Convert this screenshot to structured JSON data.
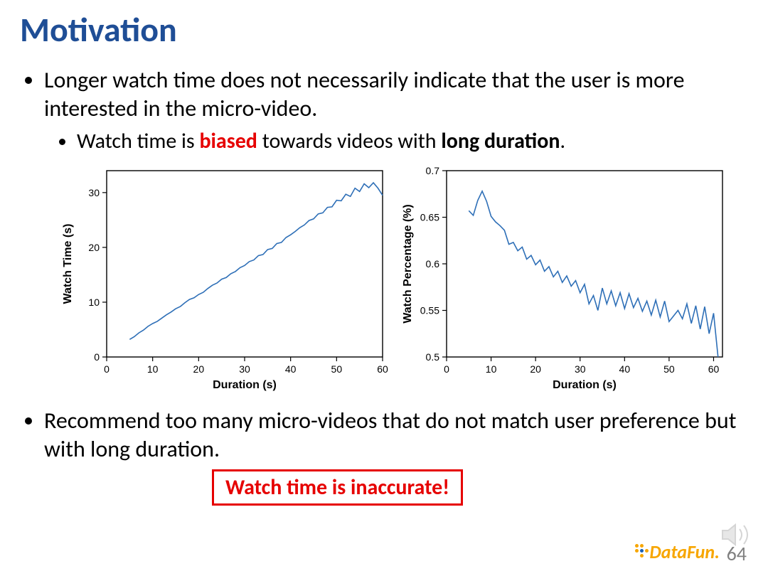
{
  "title": "Motivation",
  "title_color": "#1f4e96",
  "bullets": {
    "b1": "Longer watch time does not necessarily indicate that the user is more interested in the micro-video.",
    "b1_sub_prefix": "Watch time is ",
    "b1_sub_biased": "biased",
    "b1_sub_mid": " towards videos with ",
    "b1_sub_bold": "long duration",
    "b1_sub_suffix": ".",
    "b2": "Recommend too many micro-videos that do not match user preference but with long duration."
  },
  "biased_color": "#e60000",
  "callout": "Watch time is inaccurate!",
  "callout_color": "#e60000",
  "page_number": "64",
  "logo_text_1": "Data",
  "logo_text_2": "Fun.",
  "chart_left": {
    "type": "line",
    "xlabel": "Duration (s)",
    "ylabel": "Watch Time (s)",
    "label_fontsize": 16,
    "tick_fontsize": 14,
    "xlim": [
      0,
      60
    ],
    "ylim": [
      0,
      34
    ],
    "xticks": [
      0,
      10,
      20,
      30,
      40,
      50,
      60
    ],
    "yticks": [
      0,
      10,
      20,
      30
    ],
    "line_color": "#2e6fb7",
    "line_width": 1.6,
    "axis_color": "#000000",
    "background_color": "#ffffff",
    "data": {
      "x": [
        5,
        6,
        7,
        8,
        9,
        10,
        11,
        12,
        13,
        14,
        15,
        16,
        17,
        18,
        19,
        20,
        21,
        22,
        23,
        24,
        25,
        26,
        27,
        28,
        29,
        30,
        31,
        32,
        33,
        34,
        35,
        36,
        37,
        38,
        39,
        40,
        41,
        42,
        43,
        44,
        45,
        46,
        47,
        48,
        49,
        50,
        51,
        52,
        53,
        54,
        55,
        56,
        57,
        58,
        59,
        60
      ],
      "y": [
        3.2,
        3.7,
        4.4,
        4.9,
        5.6,
        6.1,
        6.5,
        7.1,
        7.7,
        8.2,
        8.8,
        9.2,
        9.9,
        10.5,
        10.8,
        11.4,
        11.8,
        12.5,
        13.1,
        13.5,
        14.2,
        14.5,
        15.2,
        15.6,
        16.3,
        16.7,
        17.4,
        17.7,
        18.5,
        18.7,
        19.6,
        19.8,
        20.7,
        20.9,
        21.8,
        22.3,
        22.9,
        23.6,
        24.1,
        24.9,
        25.2,
        26.1,
        26.3,
        27.3,
        27.4,
        28.6,
        28.5,
        29.7,
        29.3,
        30.8,
        30.2,
        31.6,
        30.9,
        31.8,
        30.8,
        29.5
      ]
    }
  },
  "chart_right": {
    "type": "line",
    "xlabel": "Duration (s)",
    "ylabel": "Watch Percentage (%)",
    "label_fontsize": 16,
    "tick_fontsize": 14,
    "xlim": [
      0,
      62
    ],
    "ylim": [
      0.5,
      0.7
    ],
    "xticks": [
      0,
      10,
      20,
      30,
      40,
      50,
      60
    ],
    "yticks": [
      0.5,
      0.55,
      0.6,
      0.65,
      0.7
    ],
    "line_color": "#2e6fb7",
    "line_width": 1.6,
    "axis_color": "#000000",
    "background_color": "#ffffff",
    "data": {
      "x": [
        5,
        6,
        7,
        8,
        9,
        10,
        11,
        12,
        13,
        14,
        15,
        16,
        17,
        18,
        19,
        20,
        21,
        22,
        23,
        24,
        25,
        26,
        27,
        28,
        29,
        30,
        31,
        32,
        33,
        34,
        35,
        36,
        37,
        38,
        39,
        40,
        41,
        42,
        43,
        44,
        45,
        46,
        47,
        48,
        49,
        50,
        51,
        52,
        53,
        54,
        55,
        56,
        57,
        58,
        59,
        60,
        61
      ],
      "y": [
        0.657,
        0.652,
        0.668,
        0.678,
        0.667,
        0.651,
        0.645,
        0.641,
        0.636,
        0.621,
        0.623,
        0.614,
        0.618,
        0.605,
        0.609,
        0.599,
        0.604,
        0.592,
        0.597,
        0.586,
        0.592,
        0.58,
        0.587,
        0.576,
        0.582,
        0.569,
        0.578,
        0.557,
        0.566,
        0.55,
        0.574,
        0.557,
        0.571,
        0.555,
        0.569,
        0.552,
        0.568,
        0.553,
        0.563,
        0.549,
        0.56,
        0.545,
        0.561,
        0.543,
        0.56,
        0.538,
        0.544,
        0.55,
        0.541,
        0.557,
        0.536,
        0.555,
        0.53,
        0.554,
        0.525,
        0.547,
        0.5
      ]
    }
  }
}
